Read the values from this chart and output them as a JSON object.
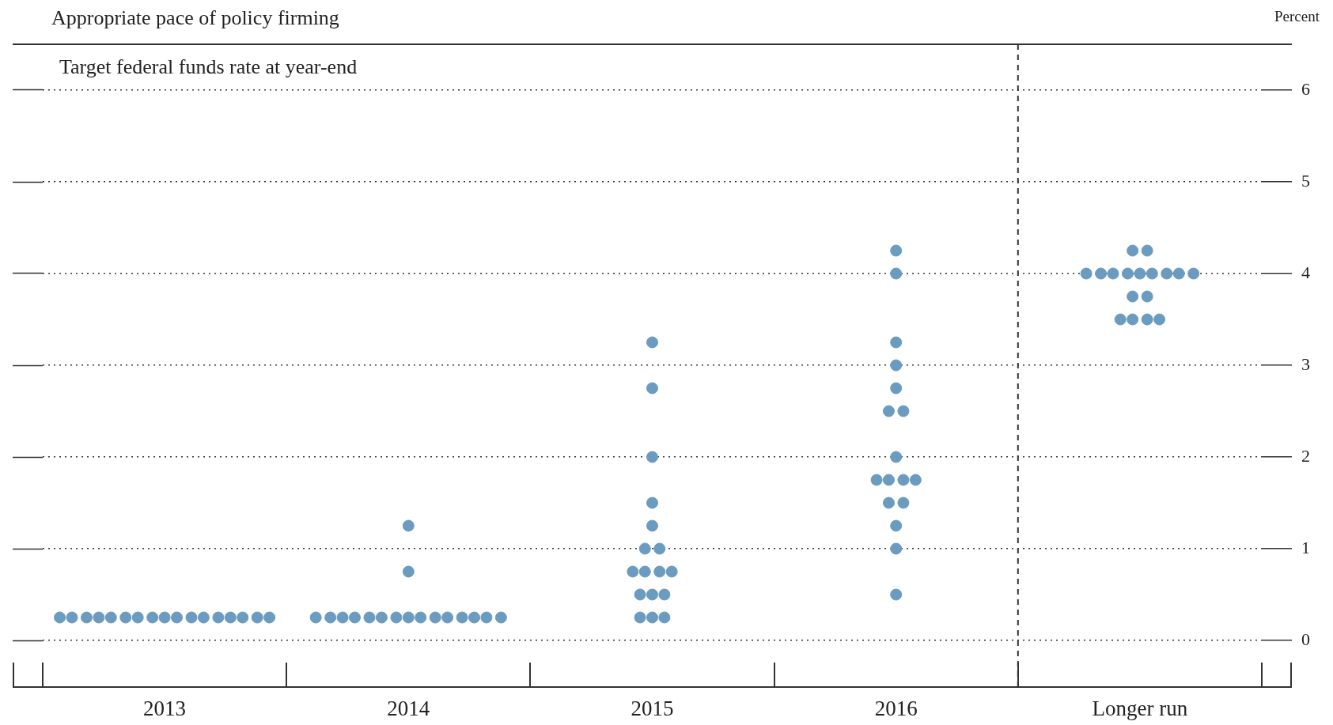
{
  "chart_data": {
    "type": "scatter",
    "title": "Appropriate pace of policy firming",
    "subtitle": "Target federal funds rate at year-end",
    "ylabel": "Percent",
    "xlim": [
      2012.5,
      2017.5
    ],
    "xticks": [
      2013,
      2014,
      2015,
      2016,
      {
        "value": 2017,
        "label": "Longer run"
      }
    ],
    "ylim": [
      -0.5,
      6.5
    ],
    "yticks": [
      0,
      1,
      2,
      3,
      4,
      5,
      6
    ],
    "grid": "y",
    "legend": false,
    "marker": "circle",
    "ref_lines": [
      {
        "axis": "x",
        "value": 2016.5,
        "line_style": "dashed",
        "color": "#333333"
      }
    ],
    "series": [
      {
        "color": "#6b9cc0",
        "x": [
          2012.57,
          2012.62,
          2012.68,
          2012.73,
          2012.78,
          2012.84,
          2012.89,
          2012.95,
          2013,
          2013.05,
          2013.11,
          2013.16,
          2013.22,
          2013.27,
          2013.32,
          2013.38,
          2013.43
        ],
        "values": [
          0.25,
          0.25,
          0.25,
          0.25,
          0.25,
          0.25,
          0.25,
          0.25,
          0.25,
          0.25,
          0.25,
          0.25,
          0.25,
          0.25,
          0.25,
          0.25,
          0.25
        ]
      },
      {
        "color": "#6b9cc0",
        "x": [
          2013.62,
          2013.68,
          2013.73,
          2013.78,
          2013.84,
          2013.89,
          2013.95,
          2014,
          2014.05,
          2014.11,
          2014.16,
          2014.22,
          2014.27,
          2014.32,
          2014.38,
          2014,
          2014
        ],
        "values": [
          0.25,
          0.25,
          0.25,
          0.25,
          0.25,
          0.25,
          0.25,
          0.25,
          0.25,
          0.25,
          0.25,
          0.25,
          0.25,
          0.25,
          0.25,
          0.75,
          1.25
        ]
      },
      {
        "color": "#6b9cc0",
        "x": [
          2014.95,
          2015,
          2015.05,
          2014.95,
          2015,
          2015.05,
          2014.92,
          2014.97,
          2015.03,
          2015.08,
          2014.97,
          2015.03,
          2015,
          2015,
          2015,
          2015,
          2015
        ],
        "values": [
          0.25,
          0.25,
          0.25,
          0.5,
          0.5,
          0.5,
          0.75,
          0.75,
          0.75,
          0.75,
          1,
          1,
          1.25,
          1.5,
          2,
          2.75,
          3.25
        ]
      },
      {
        "color": "#6b9cc0",
        "x": [
          2016,
          2016,
          2016,
          2015.97,
          2016.03,
          2015.92,
          2015.97,
          2016.03,
          2016.08,
          2016,
          2015.97,
          2016.03,
          2016,
          2016,
          2016,
          2016,
          2016
        ],
        "values": [
          0.5,
          1,
          1.25,
          1.5,
          1.5,
          1.75,
          1.75,
          1.75,
          1.75,
          2,
          2.5,
          2.5,
          2.75,
          3,
          3.25,
          4,
          4.25
        ]
      },
      {
        "color": "#6b9cc0",
        "x": [
          2016.92,
          2016.97,
          2017.03,
          2017.08,
          2016.97,
          2017.03,
          2016.78,
          2016.84,
          2016.89,
          2016.95,
          2017,
          2017.05,
          2017.11,
          2017.16,
          2017.22,
          2016.97,
          2017.03
        ],
        "values": [
          3.5,
          3.5,
          3.5,
          3.5,
          3.75,
          3.75,
          4,
          4,
          4,
          4,
          4,
          4,
          4,
          4,
          4,
          4.25,
          4.25
        ]
      }
    ]
  }
}
